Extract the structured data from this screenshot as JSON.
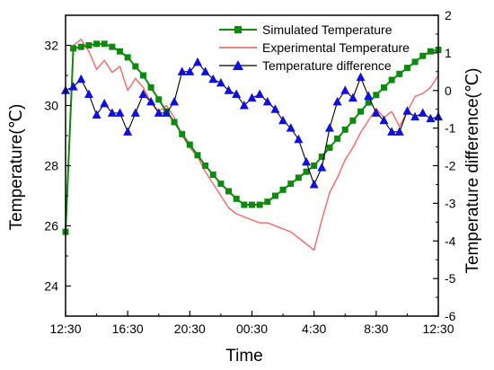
{
  "chart_data": {
    "type": "line",
    "title": "",
    "xlabel": "Time",
    "ylabel_left": "Temperature(℃)",
    "ylabel_right": "Temperature difference(℃)",
    "x_ticks": [
      "12:30",
      "16:30",
      "20:30",
      "00:30",
      "4:30",
      "8:30",
      "12:30"
    ],
    "x_range_hours": [
      0,
      24
    ],
    "y_left_range": [
      23,
      33
    ],
    "y_left_ticks": [
      24,
      26,
      28,
      30,
      32
    ],
    "y_right_range": [
      -6,
      2
    ],
    "y_right_ticks": [
      -6,
      -5,
      -4,
      -3,
      -2,
      -1,
      0,
      1,
      2
    ],
    "grid": false,
    "legend_position": "top-right",
    "colors": {
      "simulated": "#0d8a0d",
      "experimental": "#f07070",
      "difference_marker": "#1010dd",
      "difference_line": "#000000"
    },
    "series": [
      {
        "name": "Simulated Temperature",
        "axis": "left",
        "marker": "square",
        "x": [
          0,
          0.5,
          1,
          1.5,
          2,
          2.5,
          3,
          3.5,
          4,
          4.5,
          5,
          5.5,
          6,
          6.5,
          7,
          7.5,
          8,
          8.5,
          9,
          9.5,
          10,
          10.5,
          11,
          11.5,
          12,
          12.5,
          13,
          13.5,
          14,
          14.5,
          15,
          15.5,
          16,
          16.5,
          17,
          17.5,
          18,
          18.5,
          19,
          19.5,
          20,
          20.5,
          21,
          21.5,
          22,
          22.5,
          23,
          23.5,
          24
        ],
        "y": [
          25.8,
          31.9,
          31.95,
          32.0,
          32.05,
          32.05,
          31.95,
          31.8,
          31.6,
          31.3,
          31.0,
          30.6,
          30.2,
          29.8,
          29.45,
          29.05,
          28.7,
          28.35,
          28.0,
          27.7,
          27.4,
          27.15,
          26.9,
          26.7,
          26.7,
          26.7,
          26.8,
          27.0,
          27.2,
          27.4,
          27.6,
          27.8,
          28.0,
          28.3,
          28.6,
          28.9,
          29.2,
          29.5,
          29.8,
          30.1,
          30.35,
          30.6,
          30.85,
          31.05,
          31.25,
          31.45,
          31.65,
          31.8,
          31.85
        ]
      },
      {
        "name": "Experimental Temperature",
        "axis": "left",
        "marker": "none",
        "x": [
          0,
          0.5,
          1,
          1.5,
          2,
          2.5,
          3,
          3.5,
          4,
          4.5,
          5,
          5.5,
          6,
          6.5,
          7,
          7.5,
          8,
          8.5,
          9,
          9.5,
          10,
          10.5,
          11,
          11.5,
          12,
          12.5,
          13,
          13.5,
          14,
          14.5,
          15,
          15.5,
          16,
          16.5,
          17,
          17.5,
          18,
          18.5,
          19,
          19.5,
          20,
          20.5,
          21,
          21.5,
          22,
          22.5,
          23,
          23.5,
          24
        ],
        "y": [
          25.8,
          32.0,
          32.2,
          31.8,
          31.2,
          31.5,
          31.1,
          31.3,
          30.5,
          30.9,
          30.6,
          30.1,
          29.8,
          30.0,
          29.6,
          29.0,
          28.6,
          28.3,
          27.8,
          27.4,
          27.0,
          26.6,
          26.4,
          26.3,
          26.2,
          26.1,
          26.1,
          26.0,
          25.9,
          25.8,
          25.6,
          25.4,
          25.2,
          26.2,
          27.1,
          27.6,
          28.2,
          28.6,
          29.1,
          29.5,
          29.9,
          29.6,
          29.8,
          29.3,
          29.8,
          30.3,
          30.4,
          30.6,
          31.0
        ]
      },
      {
        "name": "Temperature difference",
        "axis": "right",
        "marker": "triangle",
        "x": [
          0,
          0.5,
          1,
          1.5,
          2,
          2.5,
          3,
          3.5,
          4,
          4.5,
          5,
          5.5,
          6,
          6.5,
          7,
          7.5,
          8,
          8.5,
          9,
          9.5,
          10,
          10.5,
          11,
          11.5,
          12,
          12.5,
          13,
          13.5,
          14,
          14.5,
          15,
          15.5,
          16,
          16.5,
          17,
          17.5,
          18,
          18.5,
          19,
          19.5,
          20,
          20.5,
          21,
          21.5,
          22,
          22.5,
          23,
          23.5,
          24
        ],
        "y": [
          0.0,
          0.1,
          0.3,
          -0.1,
          -0.65,
          -0.35,
          -0.6,
          -0.6,
          -1.1,
          -0.6,
          -0.1,
          -0.3,
          -0.6,
          -0.6,
          -0.3,
          0.5,
          0.5,
          0.75,
          0.5,
          0.3,
          0.2,
          0.0,
          -0.1,
          -0.4,
          -0.2,
          -0.1,
          -0.3,
          -0.5,
          -0.8,
          -1.0,
          -1.3,
          -1.9,
          -2.5,
          -2.05,
          -1.0,
          -0.3,
          0.0,
          -0.2,
          0.35,
          -0.15,
          -0.6,
          -0.8,
          -1.1,
          -1.1,
          -0.55,
          -0.7,
          -0.6,
          -0.75,
          -0.7
        ]
      }
    ]
  }
}
